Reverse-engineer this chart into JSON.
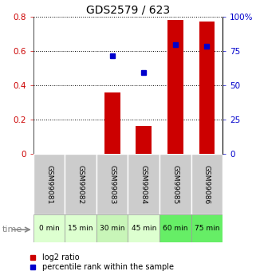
{
  "title": "GDS2579 / 623",
  "samples": [
    "GSM99081",
    "GSM99082",
    "GSM99083",
    "GSM99084",
    "GSM99085",
    "GSM99086"
  ],
  "time_labels": [
    "0 min",
    "15 min",
    "30 min",
    "45 min",
    "60 min",
    "75 min"
  ],
  "time_colors": [
    "#ddffd0",
    "#ddffd0",
    "#c8f5b8",
    "#ddffd0",
    "#66ee66",
    "#66ee66"
  ],
  "log2_ratio": [
    0.0,
    0.0,
    0.36,
    0.165,
    0.78,
    0.77
  ],
  "percentile_rank_pct": [
    null,
    null,
    71.5,
    59.5,
    79.5,
    78.5
  ],
  "bar_color": "#cc0000",
  "dot_color": "#0000cc",
  "ylim_left": [
    0,
    0.8
  ],
  "ylim_right": [
    0,
    100
  ],
  "yticks_left": [
    0,
    0.2,
    0.4,
    0.6,
    0.8
  ],
  "yticks_right": [
    0,
    25,
    50,
    75,
    100
  ],
  "ytick_labels_left": [
    "0",
    "0.2",
    "0.4",
    "0.6",
    "0.8"
  ],
  "ytick_labels_right": [
    "0",
    "25",
    "50",
    "75",
    "100%"
  ],
  "sample_bg_color": "#cccccc",
  "legend_label_red": "log2 ratio",
  "legend_label_blue": "percentile rank within the sample",
  "bar_width": 0.5
}
